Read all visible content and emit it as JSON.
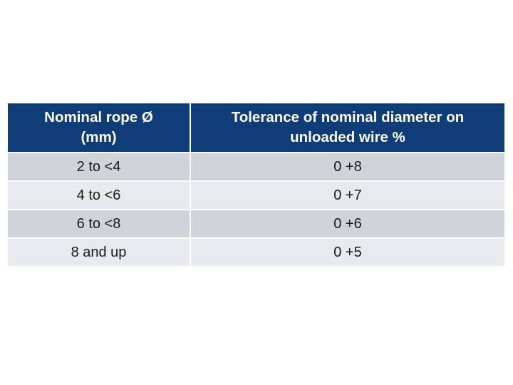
{
  "table": {
    "header": {
      "col1": [
        "Nominal rope Ø",
        "(mm)"
      ],
      "col2": [
        "Tolerance of nominal diameter on",
        "unloaded wire %"
      ]
    },
    "rows": [
      {
        "diameter": "2 to <4",
        "tolerance": "0 +8"
      },
      {
        "diameter": "4 to <6",
        "tolerance": "0 +7"
      },
      {
        "diameter": "6 to <8",
        "tolerance": "0 +6"
      },
      {
        "diameter": "8 and up",
        "tolerance": "0 +5"
      }
    ]
  },
  "colors": {
    "header_bg": "#0e3d78",
    "row_dark": "#cfd3da",
    "row_light": "#e8eaee"
  }
}
